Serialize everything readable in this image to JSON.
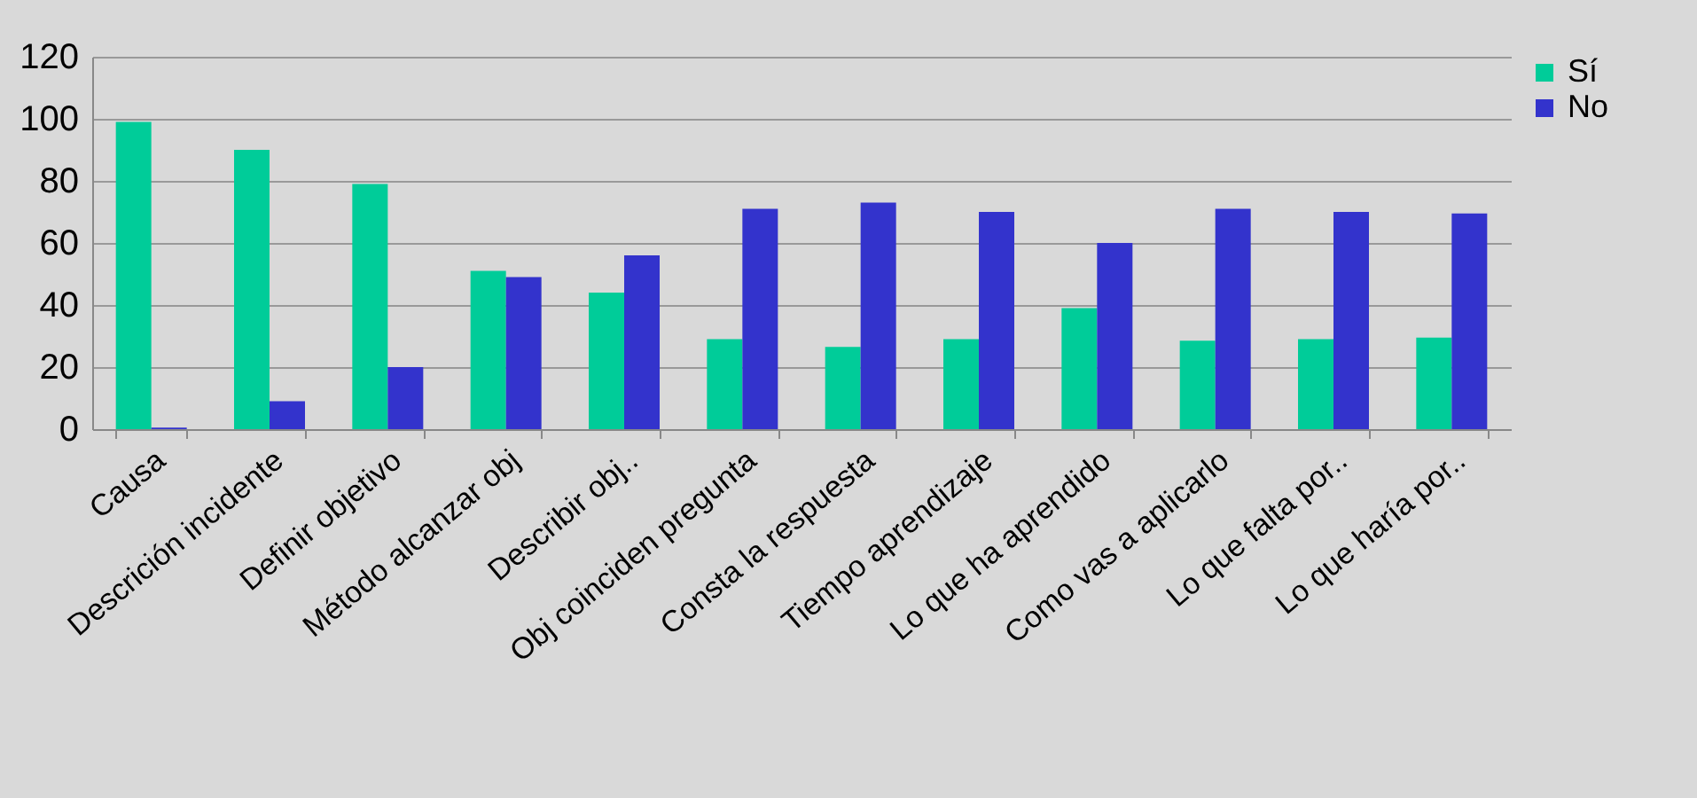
{
  "chart_data": {
    "type": "bar",
    "categories": [
      "Causa",
      "Descrición incidente",
      "Definir objetivo",
      "Método alcanzar obj",
      "Describir obj..",
      "Obj coinciden pregunta",
      "Consta la respuesta",
      "Tiempo aprendizaje",
      "Lo que ha aprendido",
      "Como vas a aplicarlo",
      "Lo que falta por..",
      "Lo que haría por.."
    ],
    "series": [
      {
        "name": "Sí",
        "color": "#00cc99",
        "values": [
          99,
          90,
          79,
          51,
          44,
          29,
          26.5,
          29,
          39,
          28.5,
          29,
          29.5
        ]
      },
      {
        "name": "No",
        "color": "#3333cc",
        "values": [
          0.5,
          9,
          20,
          49,
          56,
          71,
          73,
          70,
          60,
          71,
          70,
          69.5
        ]
      }
    ],
    "ylim": [
      0,
      120
    ],
    "yticks": [
      0,
      20,
      40,
      60,
      80,
      100,
      120
    ],
    "grid": "y",
    "legend": "right"
  }
}
